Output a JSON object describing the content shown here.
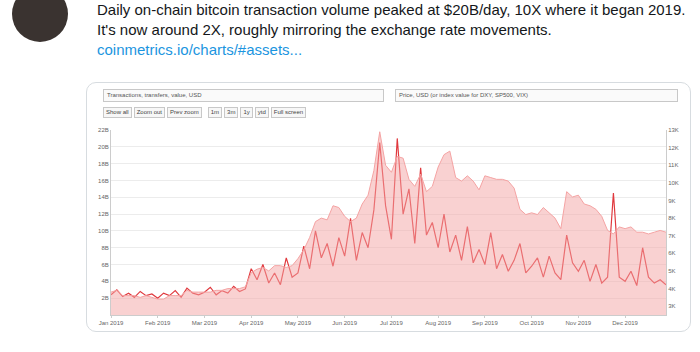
{
  "chart_data": {
    "type": "line",
    "title": "Daily on-chain bitcoin transaction volume peaked at $20B/day, 10X where it began 2019. It's now around 2X, roughly mirroring the exchange rate movements.",
    "subtitle": "coinmetrics.io/charts/#assets...",
    "annotations": [
      "Transactions, transfers, value, USD",
      "Price, USD (or index value for DXY, SP500, VIX)",
      "Show all",
      "Zoom out",
      "Prev zoom",
      "1m",
      "3m",
      "1y",
      "ytd",
      "Full screen"
    ],
    "categories": [
      "Jan 2019",
      null,
      null,
      null,
      null,
      null,
      null,
      null,
      "Feb 2019",
      null,
      null,
      null,
      null,
      null,
      null,
      null,
      "Mar 2019",
      null,
      null,
      null,
      null,
      null,
      null,
      null,
      "Apr 2019",
      null,
      null,
      null,
      null,
      null,
      null,
      null,
      "May 2019",
      null,
      null,
      null,
      null,
      null,
      null,
      null,
      "Jun 2019",
      null,
      null,
      null,
      null,
      null,
      null,
      null,
      "Jul 2019",
      null,
      null,
      null,
      null,
      null,
      null,
      null,
      "Aug 2019",
      null,
      null,
      null,
      null,
      null,
      null,
      null,
      "Sep 2019",
      null,
      null,
      null,
      null,
      null,
      null,
      null,
      "Oct 2019",
      null,
      null,
      null,
      null,
      null,
      null,
      null,
      "Nov 2019",
      null,
      null,
      null,
      null,
      null,
      null,
      null,
      "Dec 2019",
      null,
      null,
      null,
      null,
      null,
      null,
      null
    ],
    "series": [
      {
        "name": "Price, USD",
        "type": "area",
        "axis": "y2",
        "color": "#f4a3a3",
        "values": [
          3.8,
          3.9,
          3.6,
          3.6,
          3.6,
          3.5,
          3.6,
          3.5,
          3.4,
          3.4,
          3.6,
          3.6,
          3.6,
          3.9,
          3.8,
          3.8,
          3.8,
          3.8,
          3.9,
          3.9,
          4.0,
          4.0,
          4.0,
          4.1,
          4.9,
          5.1,
          5.2,
          5.0,
          5.3,
          5.3,
          5.2,
          5.3,
          5.7,
          6.2,
          6.9,
          7.8,
          8.0,
          7.9,
          8.7,
          8.6,
          8.1,
          7.8,
          8.0,
          8.8,
          9.3,
          10.7,
          12.9,
          11.0,
          10.6,
          11.5,
          11.4,
          10.2,
          9.8,
          10.5,
          9.5,
          9.8,
          10.9,
          11.6,
          11.8,
          10.3,
          10.1,
          10.4,
          10.1,
          9.6,
          10.4,
          10.3,
          10.2,
          10.2,
          10.1,
          9.7,
          8.5,
          8.2,
          8.3,
          8.2,
          8.6,
          8.3,
          8.0,
          7.4,
          9.5,
          9.2,
          9.3,
          8.8,
          8.7,
          8.5,
          8.1,
          7.3,
          7.1,
          7.5,
          7.4,
          7.5,
          7.2,
          7.2,
          7.1,
          7.2,
          7.3,
          7.2
        ]
      },
      {
        "name": "Transactions, transfers, value, USD",
        "type": "line",
        "color": "#e0393e",
        "values": [
          2.4,
          3.0,
          2.2,
          2.6,
          2.1,
          2.8,
          2.3,
          2.5,
          2.0,
          2.6,
          2.3,
          2.9,
          2.1,
          3.2,
          2.6,
          2.4,
          2.7,
          3.3,
          2.4,
          2.9,
          2.6,
          3.4,
          2.8,
          3.1,
          5.5,
          4.2,
          6.0,
          3.8,
          5.0,
          3.6,
          6.8,
          4.5,
          5.0,
          8.2,
          5.5,
          10.0,
          6.8,
          8.5,
          5.8,
          9.2,
          7.0,
          11.5,
          6.5,
          9.8,
          8.0,
          12.5,
          20.5,
          13.0,
          9.0,
          21.0,
          12.0,
          15.0,
          8.5,
          17.5,
          9.5,
          11.0,
          8.0,
          12.0,
          7.5,
          9.5,
          6.5,
          10.5,
          6.2,
          7.8,
          6.0,
          9.8,
          5.5,
          7.2,
          5.2,
          6.5,
          8.5,
          5.0,
          5.8,
          6.8,
          4.5,
          7.0,
          5.0,
          4.2,
          9.5,
          6.2,
          5.2,
          6.5,
          4.0,
          6.0,
          3.8,
          4.5,
          14.5,
          4.5,
          4.0,
          5.2,
          3.5,
          8.0,
          4.5,
          3.8,
          4.2,
          3.6
        ]
      }
    ],
    "ylim": [
      0,
      22
    ],
    "yticks": [
      {
        "value": 2,
        "label": "2B"
      },
      {
        "value": 4,
        "label": "4B"
      },
      {
        "value": 6,
        "label": "6B"
      },
      {
        "value": 8,
        "label": "8B"
      },
      {
        "value": 10,
        "label": "10B"
      },
      {
        "value": 12,
        "label": "12B"
      },
      {
        "value": 14,
        "label": "14B"
      },
      {
        "value": 16,
        "label": "16B"
      },
      {
        "value": 18,
        "label": "18B"
      },
      {
        "value": 20,
        "label": "20B"
      },
      {
        "value": 22,
        "label": "22B"
      }
    ],
    "y2lim": [
      2.5,
      13
    ],
    "y2ticks": [
      {
        "value": 3,
        "label": "3K"
      },
      {
        "value": 4,
        "label": "4K"
      },
      {
        "value": 5,
        "label": "5K"
      },
      {
        "value": 6,
        "label": "6K"
      },
      {
        "value": 7,
        "label": "7K"
      },
      {
        "value": 8,
        "label": "8K"
      },
      {
        "value": 9,
        "label": "9K"
      },
      {
        "value": 10,
        "label": "10K"
      },
      {
        "value": 11,
        "label": "11K"
      },
      {
        "value": 12,
        "label": "12K"
      },
      {
        "value": 13,
        "label": "13K"
      }
    ],
    "grid": true
  }
}
